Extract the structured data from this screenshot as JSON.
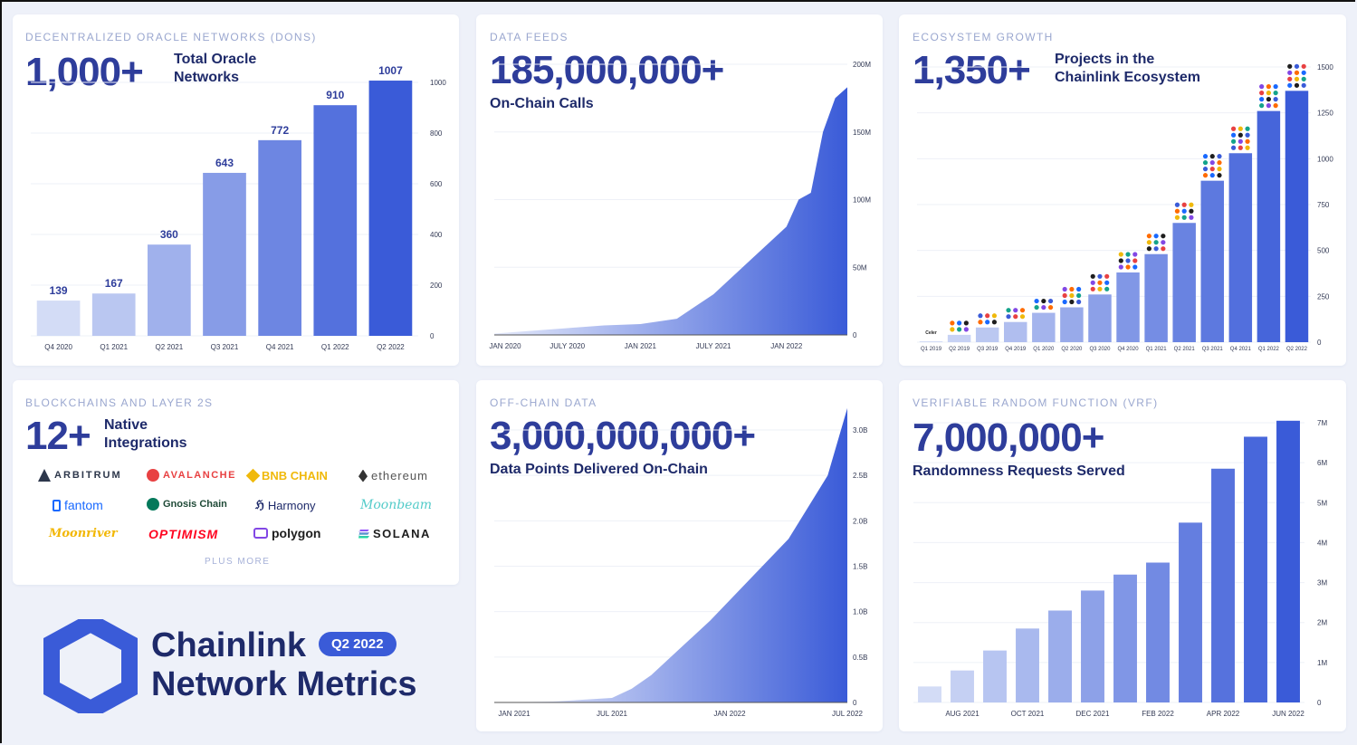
{
  "palette": {
    "accent": "#3a5bd8",
    "light": "#c9d4f4",
    "dark_text": "#1e2a6a",
    "big_text": "#2e3d9b",
    "muted": "#9aa7cf"
  },
  "dons": {
    "category": "DECENTRALIZED ORACLE NETWORKS (DONs)",
    "big": "1,000+",
    "sub_line1": "Total Oracle",
    "sub_line2": "Networks"
  },
  "feeds": {
    "category": "DATA FEEDS",
    "big": "185,000,000+",
    "sub": "On-Chain Calls"
  },
  "eco": {
    "category": "ECOSYSTEM GROWTH",
    "big": "1,350+",
    "sub_line1": "Projects in the",
    "sub_line2": "Chainlink Ecosystem",
    "first_logo": "Celer"
  },
  "chains": {
    "category": "BLOCKCHAINS AND LAYER 2s",
    "big": "12+",
    "sub_line1": "Native",
    "sub_line2": "Integrations",
    "logos": [
      "ARBITRUM",
      "AVALANCHE",
      "BNB CHAIN",
      "ethereum",
      "fantom",
      "Gnosis Chain",
      "Harmony",
      "Moonbeam",
      "Moonriver",
      "OPTIMISM",
      "polygon",
      "SOLANA"
    ],
    "plus_more": "PLUS MORE"
  },
  "offchain": {
    "category": "OFF-CHAIN DATA",
    "big": "3,000,000,000+",
    "sub": "Data Points Delivered On-Chain"
  },
  "vrf": {
    "category": "VERIFIABLE RANDOM FUNCTION (VRF)",
    "big": "7,000,000+",
    "sub": "Randomness Requests Served"
  },
  "brand": {
    "line1": "Chainlink",
    "line2": "Network Metrics",
    "badge": "Q2 2022"
  },
  "chart_data": [
    {
      "id": "dons",
      "type": "bar",
      "categories": [
        "Q4 2020",
        "Q1 2021",
        "Q2 2021",
        "Q3 2021",
        "Q4 2021",
        "Q1 2022",
        "Q2 2022"
      ],
      "values": [
        139,
        167,
        360,
        643,
        772,
        910,
        1007
      ],
      "data_labels": [
        "139",
        "167",
        "360",
        "643",
        "772",
        "910",
        "1007"
      ],
      "ylim": [
        0,
        1000
      ],
      "yticks": [
        0,
        200,
        400,
        600,
        800,
        1000
      ],
      "ytick_labels": [
        "0",
        "200",
        "400",
        "600",
        "800",
        "1000"
      ],
      "grid": true
    },
    {
      "id": "feeds",
      "type": "area",
      "x_tick_labels": [
        "JAN 2020",
        "JULY 2020",
        "JAN 2021",
        "JULY 2021",
        "JAN 2022"
      ],
      "x": [
        "2020-01",
        "2020-04",
        "2020-07",
        "2020-10",
        "2021-01",
        "2021-04",
        "2021-07",
        "2021-10",
        "2022-01",
        "2022-02",
        "2022-03",
        "2022-04",
        "2022-05",
        "2022-06"
      ],
      "values_millions": [
        1,
        3,
        5,
        7,
        8,
        12,
        30,
        55,
        80,
        100,
        105,
        150,
        175,
        183
      ],
      "ylim": [
        0,
        200
      ],
      "ytick_labels": [
        "0",
        "50M",
        "100M",
        "150M",
        "200M"
      ],
      "grid": true
    },
    {
      "id": "eco",
      "type": "bar",
      "categories": [
        "Q1 2019",
        "Q2 2019",
        "Q3 2019",
        "Q4 2019",
        "Q1 2020",
        "Q2 2020",
        "Q3 2020",
        "Q4 2020",
        "Q1 2021",
        "Q2 2021",
        "Q3 2021",
        "Q4 2021",
        "Q1 2022",
        "Q2 2022"
      ],
      "values": [
        5,
        40,
        80,
        110,
        160,
        190,
        260,
        380,
        480,
        650,
        880,
        1030,
        1260,
        1370
      ],
      "ylim": [
        0,
        1500
      ],
      "ytick_labels": [
        "0",
        "250",
        "500",
        "750",
        "1000",
        "1250",
        "1500"
      ],
      "grid": true
    },
    {
      "id": "offchain",
      "type": "area",
      "x_tick_labels": [
        "JAN 2021",
        "JUL 2021",
        "JAN 2022",
        "JUL 2022"
      ],
      "x": [
        "2021-01",
        "2021-04",
        "2021-07",
        "2021-08",
        "2021-09",
        "2021-10",
        "2021-12",
        "2022-02",
        "2022-04",
        "2022-06",
        "2022-07"
      ],
      "values_billions": [
        0,
        0.01,
        0.05,
        0.15,
        0.3,
        0.5,
        0.9,
        1.35,
        1.8,
        2.5,
        3.3
      ],
      "ylim": [
        0,
        3.0
      ],
      "ytick_labels": [
        "0",
        "0.5B",
        "1.0B",
        "1.5B",
        "2.0B",
        "2.5B",
        "3.0B"
      ],
      "grid": true
    },
    {
      "id": "vrf",
      "type": "bar",
      "x_tick_labels": [
        "AUG 2021",
        "OCT 2021",
        "DEC 2021",
        "FEB 2022",
        "APR 2022",
        "JUN 2022"
      ],
      "values_millions": [
        0.4,
        0.8,
        1.3,
        1.85,
        2.3,
        2.8,
        3.2,
        3.5,
        4.5,
        5.85,
        6.65,
        7.05
      ],
      "ylim": [
        0,
        7
      ],
      "ytick_labels": [
        "0",
        "1M",
        "2M",
        "3M",
        "4M",
        "5M",
        "6M",
        "7M"
      ],
      "grid": true
    }
  ]
}
